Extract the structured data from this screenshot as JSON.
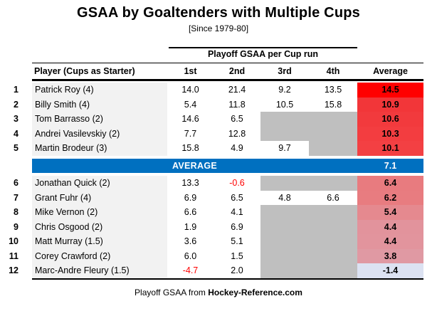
{
  "title": "GSAA by Goaltenders with Multiple Cups",
  "subtitle": "[Since 1979-80]",
  "colors": {
    "accent_blue": "#0070C0",
    "missing_gray": "#BFBFBF",
    "player_col_bg": "#F2F2F2",
    "negative_text": "#FF0000",
    "rule_black": "#000000"
  },
  "table": {
    "group_header": "Playoff GSAA per Cup run",
    "columns": [
      "Player (Cups as Starter)",
      "1st",
      "2nd",
      "3rd",
      "4th",
      "Average"
    ],
    "rows_above": [
      {
        "rank": "1",
        "player": "Patrick Roy (4)",
        "values": [
          "14.0",
          "21.4",
          "9.2",
          "13.5"
        ],
        "average": "14.5",
        "avg_color": "#FF0000"
      },
      {
        "rank": "2",
        "player": "Billy Smith (4)",
        "values": [
          "5.4",
          "11.8",
          "10.5",
          "15.8"
        ],
        "average": "10.9",
        "avg_color": "#F23639"
      },
      {
        "rank": "3",
        "player": "Tom Barrasso (2)",
        "values": [
          "14.6",
          "6.5",
          null,
          null
        ],
        "average": "10.6",
        "avg_color": "#F23A3D"
      },
      {
        "rank": "4",
        "player": "Andrei Vasilevskiy (2)",
        "values": [
          "7.7",
          "12.8",
          null,
          null
        ],
        "average": "10.3",
        "avg_color": "#F33D40"
      },
      {
        "rank": "5",
        "player": "Martin Brodeur (3)",
        "values": [
          "15.8",
          "4.9",
          "9.7",
          null
        ],
        "average": "10.1",
        "avg_color": "#F34043"
      }
    ],
    "average_row": {
      "label": "AVERAGE",
      "value": "7.1"
    },
    "rows_below": [
      {
        "rank": "6",
        "player": "Jonathan Quick (2)",
        "values": [
          "13.3",
          "-0.6",
          null,
          null
        ],
        "average": "6.4",
        "avg_color": "#E87B7F"
      },
      {
        "rank": "7",
        "player": "Grant Fuhr (4)",
        "values": [
          "6.9",
          "6.5",
          "4.8",
          "6.6"
        ],
        "average": "6.2",
        "avg_color": "#E87C80"
      },
      {
        "rank": "8",
        "player": "Mike Vernon (2)",
        "values": [
          "6.6",
          "4.1",
          null,
          null
        ],
        "average": "5.4",
        "avg_color": "#E5898F"
      },
      {
        "rank": "9",
        "player": "Chris Osgood (2)",
        "values": [
          "1.9",
          "6.9",
          null,
          null
        ],
        "average": "4.4",
        "avg_color": "#E2939C"
      },
      {
        "rank": "10",
        "player": "Matt Murray (1.5)",
        "values": [
          "3.6",
          "5.1",
          null,
          null
        ],
        "average": "4.4",
        "avg_color": "#E2949D"
      },
      {
        "rank": "11",
        "player": "Corey Crawford (2)",
        "values": [
          "6.0",
          "1.5",
          null,
          null
        ],
        "average": "3.8",
        "avg_color": "#E099A3"
      },
      {
        "rank": "12",
        "player": "Marc-Andre Fleury (1.5)",
        "values": [
          "-4.7",
          "2.0",
          null,
          null
        ],
        "average": "-1.4",
        "avg_color": "#DCE2F2"
      }
    ]
  },
  "footer": {
    "prefix": "Playoff GSAA from ",
    "source": "Hockey-Reference.com"
  },
  "chart_data": {
    "type": "table",
    "title": "GSAA by Goaltenders with Multiple Cups",
    "subtitle": "[Since 1979-80]",
    "column_group": "Playoff GSAA per Cup run",
    "columns": [
      "Player (Cups as Starter)",
      "1st",
      "2nd",
      "3rd",
      "4th",
      "Average"
    ],
    "rows": [
      {
        "rank": 1,
        "player": "Patrick Roy",
        "cups_as_starter": 4,
        "gsaa_per_cup": [
          14.0,
          21.4,
          9.2,
          13.5
        ],
        "average": 14.5
      },
      {
        "rank": 2,
        "player": "Billy Smith",
        "cups_as_starter": 4,
        "gsaa_per_cup": [
          5.4,
          11.8,
          10.5,
          15.8
        ],
        "average": 10.9
      },
      {
        "rank": 3,
        "player": "Tom Barrasso",
        "cups_as_starter": 2,
        "gsaa_per_cup": [
          14.6,
          6.5,
          null,
          null
        ],
        "average": 10.6
      },
      {
        "rank": 4,
        "player": "Andrei Vasilevskiy",
        "cups_as_starter": 2,
        "gsaa_per_cup": [
          7.7,
          12.8,
          null,
          null
        ],
        "average": 10.3
      },
      {
        "rank": 5,
        "player": "Martin Brodeur",
        "cups_as_starter": 3,
        "gsaa_per_cup": [
          15.8,
          4.9,
          9.7,
          null
        ],
        "average": 10.1
      },
      {
        "rank": 6,
        "player": "Jonathan Quick",
        "cups_as_starter": 2,
        "gsaa_per_cup": [
          13.3,
          -0.6,
          null,
          null
        ],
        "average": 6.4
      },
      {
        "rank": 7,
        "player": "Grant Fuhr",
        "cups_as_starter": 4,
        "gsaa_per_cup": [
          6.9,
          6.5,
          4.8,
          6.6
        ],
        "average": 6.2
      },
      {
        "rank": 8,
        "player": "Mike Vernon",
        "cups_as_starter": 2,
        "gsaa_per_cup": [
          6.6,
          4.1,
          null,
          null
        ],
        "average": 5.4
      },
      {
        "rank": 9,
        "player": "Chris Osgood",
        "cups_as_starter": 2,
        "gsaa_per_cup": [
          1.9,
          6.9,
          null,
          null
        ],
        "average": 4.4
      },
      {
        "rank": 10,
        "player": "Matt Murray",
        "cups_as_starter": 1.5,
        "gsaa_per_cup": [
          3.6,
          5.1,
          null,
          null
        ],
        "average": 4.4
      },
      {
        "rank": 11,
        "player": "Corey Crawford",
        "cups_as_starter": 2,
        "gsaa_per_cup": [
          6.0,
          1.5,
          null,
          null
        ],
        "average": 3.8
      },
      {
        "rank": 12,
        "player": "Marc-Andre Fleury",
        "cups_as_starter": 1.5,
        "gsaa_per_cup": [
          -4.7,
          2.0,
          null,
          null
        ],
        "average": -1.4
      }
    ],
    "overall_average": 7.1,
    "color_scale": "red (high average) to light blue (low average), heatmap on Average column",
    "source": "Playoff GSAA from Hockey-Reference.com"
  }
}
